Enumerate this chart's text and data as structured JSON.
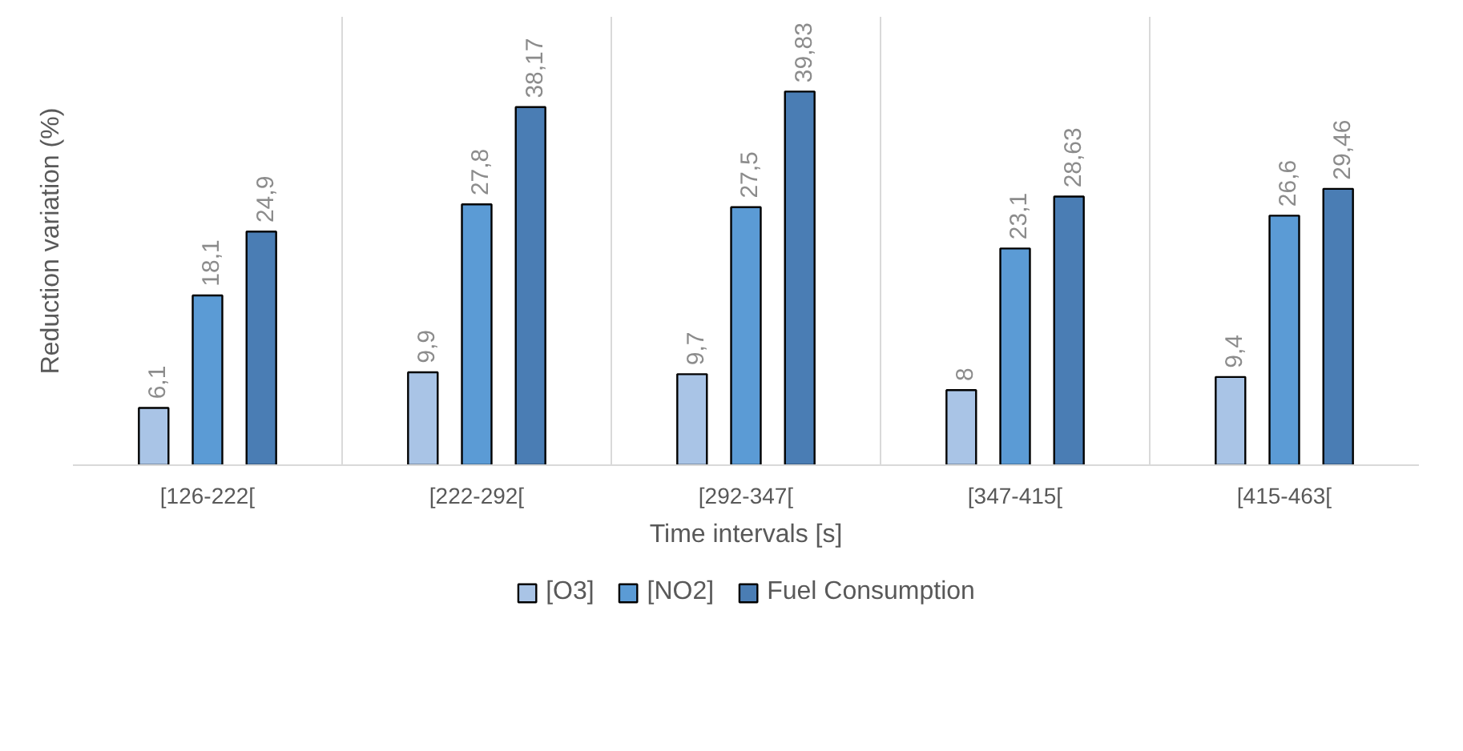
{
  "chart_data": {
    "type": "bar",
    "xlabel": "Time intervals [s]",
    "ylabel": "Reduction variation (%)",
    "categories": [
      "[126-222[",
      "[222-292[",
      "[292-347[",
      "[347-415[",
      "[415-463["
    ],
    "series": [
      {
        "name": "[O3]",
        "color": "#a9c4e6",
        "values": [
          6.1,
          9.9,
          9.7,
          8,
          9.4
        ],
        "value_labels": [
          "6,1",
          "9,9",
          "9,7",
          "8",
          "9,4"
        ]
      },
      {
        "name": "[NO2]",
        "color": "#5b9bd5",
        "values": [
          18.1,
          27.8,
          27.5,
          23.1,
          26.6
        ],
        "value_labels": [
          "18,1",
          "27,8",
          "27,5",
          "23,1",
          "26,6"
        ]
      },
      {
        "name": "Fuel Consumption",
        "color": "#4a7db4",
        "values": [
          24.9,
          38.17,
          39.83,
          28.63,
          29.46
        ],
        "value_labels": [
          "24,9",
          "38,17",
          "39,83",
          "28,63",
          "29,46"
        ]
      }
    ],
    "grid": "x",
    "legend": "bottom"
  }
}
